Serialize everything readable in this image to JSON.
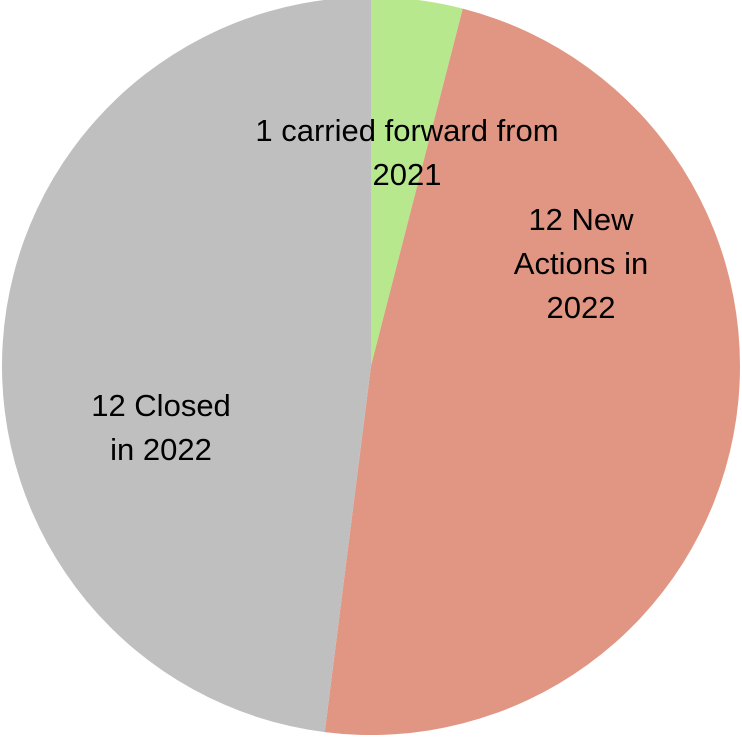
{
  "chart_data": {
    "type": "pie",
    "start_angle_deg": 0,
    "direction": "clockwise",
    "slices": [
      {
        "label_lines": [
          "1 carried forward from",
          "2021"
        ],
        "value": 1,
        "color": "#b8e88e"
      },
      {
        "label_lines": [
          "12 New",
          "Actions in",
          "2022"
        ],
        "value": 12,
        "color": "#e09682"
      },
      {
        "label_lines": [
          "12 Closed",
          "in 2022"
        ],
        "value": 12,
        "color": "#bfbfbf"
      }
    ],
    "legend": "none"
  }
}
